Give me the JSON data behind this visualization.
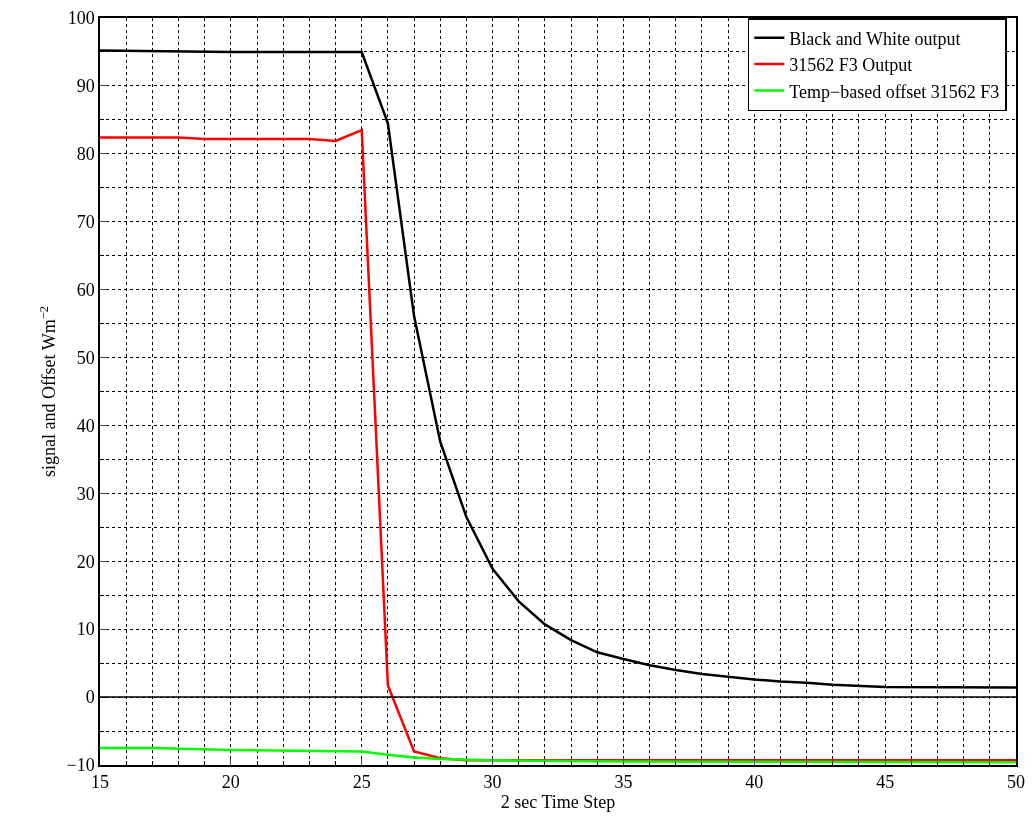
{
  "chart_data": {
    "type": "line",
    "xlabel": "2 sec Time Step",
    "ylabel": "signal and Offset Wm$^{−2}$",
    "xlim": [
      15,
      50
    ],
    "xticks": [
      15,
      20,
      25,
      30,
      35,
      40,
      45,
      50
    ],
    "ylim": [
      -10,
      100
    ],
    "yticks": [
      {
        "value": -10,
        "label": "−10"
      },
      0,
      10,
      20,
      30,
      40,
      50,
      60,
      70,
      80,
      90,
      100
    ],
    "grid": true,
    "legend": "top right",
    "marker": "none",
    "line_style": "solid",
    "ref_lines": [
      {
        "axis": "y",
        "value": 0,
        "color": "#000000"
      }
    ],
    "series": [
      {
        "name": "Black and White output",
        "color": "#000000",
        "x": [
          15,
          20,
          25,
          26,
          27,
          28,
          29,
          30,
          31,
          32,
          33,
          34,
          35,
          36,
          37,
          38,
          39,
          40,
          41,
          42,
          43,
          45,
          50
        ],
        "values": [
          95.2,
          95,
          95,
          84.5,
          56.1,
          37.6,
          26.5,
          18.9,
          14.1,
          10.7,
          8.4,
          6.6,
          5.6,
          4.7,
          4.0,
          3.4,
          3.0,
          2.6,
          2.3,
          2.1,
          1.8,
          1.5,
          1.4
        ]
      },
      {
        "name": "31562 F3 Output",
        "color": "#ff0000",
        "x": [
          15,
          18,
          19,
          23,
          24,
          25,
          26,
          27,
          28,
          29,
          35,
          50
        ],
        "values": [
          82.4,
          82.4,
          82.2,
          82.2,
          81.9,
          83.5,
          1.7,
          -8,
          -9,
          -9.3,
          -9.3,
          -9.3
        ]
      },
      {
        "name": "Temp−based offset 31562 F3",
        "color": "#00ff00",
        "x": [
          15,
          17,
          20,
          25,
          26,
          27,
          28,
          30,
          35,
          50
        ],
        "values": [
          -7.5,
          -7.5,
          -7.8,
          -8,
          -8.5,
          -8.9,
          -9.1,
          -9.3,
          -9.5,
          -9.6
        ]
      }
    ]
  }
}
